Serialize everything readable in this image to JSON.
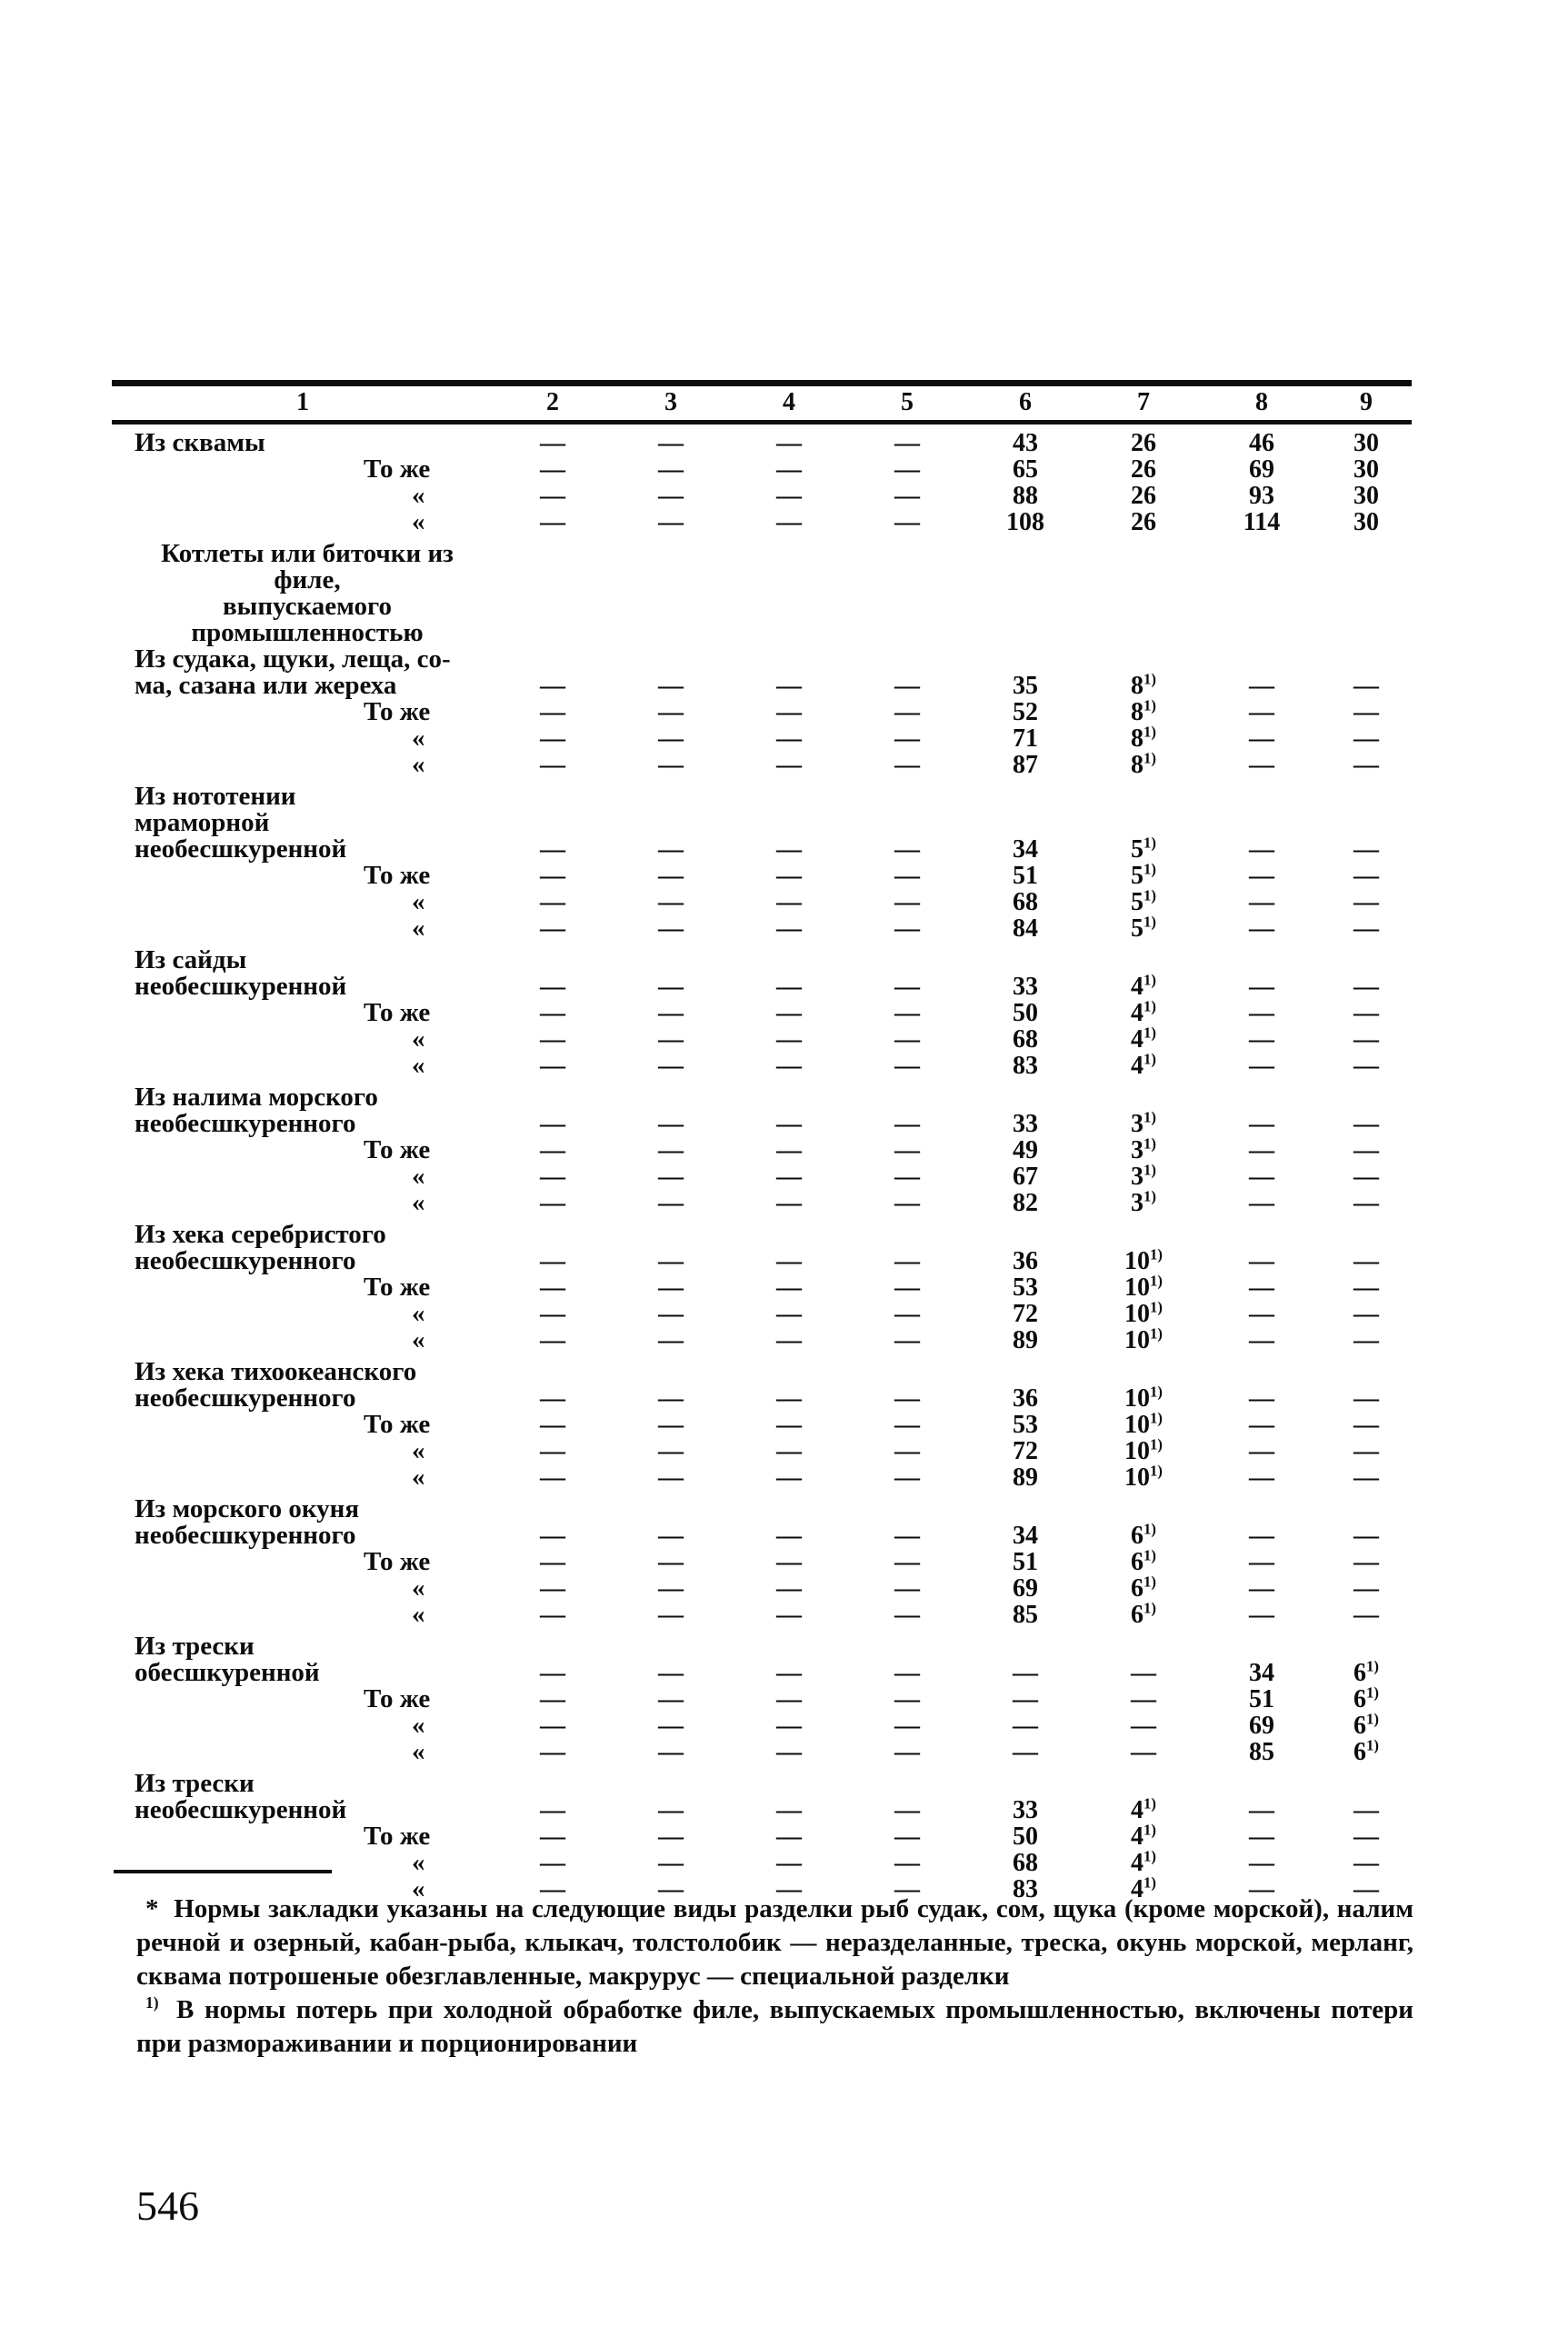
{
  "page": {
    "number": "546"
  },
  "table": {
    "columns": [
      "1",
      "2",
      "3",
      "4",
      "5",
      "6",
      "7",
      "8",
      "9"
    ],
    "rows": [
      {
        "label": "Из сквамы",
        "align": "left",
        "cells": [
          "—",
          "—",
          "—",
          "—",
          "43",
          "26",
          "46",
          "30"
        ]
      },
      {
        "label": "То же",
        "align": "toje",
        "cells": [
          "—",
          "—",
          "—",
          "—",
          "65",
          "26",
          "69",
          "30"
        ]
      },
      {
        "label": "«",
        "align": "quote",
        "cells": [
          "—",
          "—",
          "—",
          "—",
          "88",
          "26",
          "93",
          "30"
        ]
      },
      {
        "label": "«",
        "align": "quote",
        "cells": [
          "—",
          "—",
          "—",
          "—",
          "108",
          "26",
          "114",
          "30"
        ]
      },
      {
        "label": "Котлеты или биточки из филе,",
        "align": "section",
        "cells": []
      },
      {
        "label": "выпускаемого промышленностью",
        "align": "section",
        "cells": []
      },
      {
        "label": "Из судака, щуки, леща, со-",
        "align": "left",
        "cells": []
      },
      {
        "label": "ма, сазана или жереха",
        "align": "left",
        "cells": [
          "—",
          "—",
          "—",
          "—",
          "35",
          "8¹⁾",
          "—",
          "—"
        ]
      },
      {
        "label": "То же",
        "align": "toje",
        "cells": [
          "—",
          "—",
          "—",
          "—",
          "52",
          "8¹⁾",
          "—",
          "—"
        ]
      },
      {
        "label": "«",
        "align": "quote",
        "cells": [
          "—",
          "—",
          "—",
          "—",
          "71",
          "8¹⁾",
          "—",
          "—"
        ]
      },
      {
        "label": "«",
        "align": "quote",
        "cells": [
          "—",
          "—",
          "—",
          "—",
          "87",
          "8¹⁾",
          "—",
          "—"
        ]
      },
      {
        "label": "Из нототении",
        "align": "left",
        "cells": []
      },
      {
        "label": "мраморной",
        "align": "left",
        "cells": []
      },
      {
        "label": "необесшкуренной",
        "align": "left",
        "cells": [
          "—",
          "—",
          "—",
          "—",
          "34",
          "5¹⁾",
          "—",
          "—"
        ]
      },
      {
        "label": "То же",
        "align": "toje",
        "cells": [
          "—",
          "—",
          "—",
          "—",
          "51",
          "5¹⁾",
          "—",
          "—"
        ]
      },
      {
        "label": "«",
        "align": "quote",
        "cells": [
          "—",
          "—",
          "—",
          "—",
          "68",
          "5¹⁾",
          "—",
          "—"
        ]
      },
      {
        "label": "«",
        "align": "quote",
        "cells": [
          "—",
          "—",
          "—",
          "—",
          "84",
          "5¹⁾",
          "—",
          "—"
        ]
      },
      {
        "label": "Из сайды",
        "align": "left",
        "cells": []
      },
      {
        "label": "необесшкуренной",
        "align": "left",
        "cells": [
          "—",
          "—",
          "—",
          "—",
          "33",
          "4¹⁾",
          "—",
          "—"
        ]
      },
      {
        "label": "То же",
        "align": "toje",
        "cells": [
          "—",
          "—",
          "—",
          "—",
          "50",
          "4¹⁾",
          "—",
          "—"
        ]
      },
      {
        "label": "«",
        "align": "quote",
        "cells": [
          "—",
          "—",
          "—",
          "—",
          "68",
          "4¹⁾",
          "—",
          "—"
        ]
      },
      {
        "label": "«",
        "align": "quote",
        "cells": [
          "—",
          "—",
          "—",
          "—",
          "83",
          "4¹⁾",
          "—",
          "—"
        ]
      },
      {
        "label": "Из налима морского",
        "align": "left",
        "cells": []
      },
      {
        "label": "необесшкуренного",
        "align": "left",
        "cells": [
          "—",
          "—",
          "—",
          "—",
          "33",
          "3¹⁾",
          "—",
          "—"
        ]
      },
      {
        "label": "То же",
        "align": "toje",
        "cells": [
          "—",
          "—",
          "—",
          "—",
          "49",
          "3¹⁾",
          "—",
          "—"
        ]
      },
      {
        "label": "«",
        "align": "quote",
        "cells": [
          "—",
          "—",
          "—",
          "—",
          "67",
          "3¹⁾",
          "—",
          "—"
        ]
      },
      {
        "label": "«",
        "align": "quote",
        "cells": [
          "—",
          "—",
          "—",
          "—",
          "82",
          "3¹⁾",
          "—",
          "—"
        ]
      },
      {
        "label": "Из хека серебристого",
        "align": "left",
        "cells": []
      },
      {
        "label": "необесшкуренного",
        "align": "left",
        "cells": [
          "—",
          "—",
          "—",
          "—",
          "36",
          "10¹⁾",
          "—",
          "—"
        ]
      },
      {
        "label": "То же",
        "align": "toje",
        "cells": [
          "—",
          "—",
          "—",
          "—",
          "53",
          "10¹⁾",
          "—",
          "—"
        ]
      },
      {
        "label": "«",
        "align": "quote",
        "cells": [
          "—",
          "—",
          "—",
          "—",
          "72",
          "10¹⁾",
          "—",
          "—"
        ]
      },
      {
        "label": "«",
        "align": "quote",
        "cells": [
          "—",
          "—",
          "—",
          "—",
          "89",
          "10¹⁾",
          "—",
          "—"
        ]
      },
      {
        "label": "Из хека тихоокеанского",
        "align": "left",
        "cells": []
      },
      {
        "label": "необесшкуренного",
        "align": "left",
        "cells": [
          "—",
          "—",
          "—",
          "—",
          "36",
          "10¹⁾",
          "—",
          "—"
        ]
      },
      {
        "label": "То же",
        "align": "toje",
        "cells": [
          "—",
          "—",
          "—",
          "—",
          "53",
          "10¹⁾",
          "—",
          "—"
        ]
      },
      {
        "label": "«",
        "align": "quote",
        "cells": [
          "—",
          "—",
          "—",
          "—",
          "72",
          "10¹⁾",
          "—",
          "—"
        ]
      },
      {
        "label": "«",
        "align": "quote",
        "cells": [
          "—",
          "—",
          "—",
          "—",
          "89",
          "10¹⁾",
          "—",
          "—"
        ]
      },
      {
        "label": "Из морского окуня",
        "align": "left",
        "cells": []
      },
      {
        "label": "необесшкуренного",
        "align": "left",
        "cells": [
          "—",
          "—",
          "—",
          "—",
          "34",
          "6¹⁾",
          "—",
          "—"
        ]
      },
      {
        "label": "То же",
        "align": "toje",
        "cells": [
          "—",
          "—",
          "—",
          "—",
          "51",
          "6¹⁾",
          "—",
          "—"
        ]
      },
      {
        "label": "«",
        "align": "quote",
        "cells": [
          "—",
          "—",
          "—",
          "—",
          "69",
          "6¹⁾",
          "—",
          "—"
        ]
      },
      {
        "label": "«",
        "align": "quote",
        "cells": [
          "—",
          "—",
          "—",
          "—",
          "85",
          "6¹⁾",
          "—",
          "—"
        ]
      },
      {
        "label": "Из трески",
        "align": "left",
        "cells": []
      },
      {
        "label": "обесшкуренной",
        "align": "left",
        "cells": [
          "—",
          "—",
          "—",
          "—",
          "—",
          "—",
          "34",
          "6¹⁾"
        ]
      },
      {
        "label": "То же",
        "align": "toje",
        "cells": [
          "—",
          "—",
          "—",
          "—",
          "—",
          "—",
          "51",
          "6¹⁾"
        ]
      },
      {
        "label": "«",
        "align": "quote",
        "cells": [
          "—",
          "—",
          "—",
          "—",
          "—",
          "—",
          "69",
          "6¹⁾"
        ]
      },
      {
        "label": "«",
        "align": "quote",
        "cells": [
          "—",
          "—",
          "—",
          "—",
          "—",
          "—",
          "85",
          "6¹⁾"
        ]
      },
      {
        "label": "Из трески",
        "align": "left",
        "cells": []
      },
      {
        "label": "необесшкуренной",
        "align": "left",
        "cells": [
          "—",
          "—",
          "—",
          "—",
          "33",
          "4¹⁾",
          "—",
          "—"
        ]
      },
      {
        "label": "То же",
        "align": "toje",
        "cells": [
          "—",
          "—",
          "—",
          "—",
          "50",
          "4¹⁾",
          "—",
          "—"
        ]
      },
      {
        "label": "«",
        "align": "quote",
        "cells": [
          "—",
          "—",
          "—",
          "—",
          "68",
          "4¹⁾",
          "—",
          "—"
        ]
      },
      {
        "label": "«",
        "align": "quote",
        "cells": [
          "—",
          "—",
          "—",
          "—",
          "83",
          "4¹⁾",
          "—",
          "—"
        ]
      }
    ]
  },
  "footnotes": {
    "items": [
      {
        "marker": "*",
        "sup": false,
        "text": "Нормы закладки указаны на следующие виды разделки рыб судак, сом, щука (кроме морской), налим речной и озерный, кабан-рыба, клыкач, толстолобик — неразделанные, треска, окунь морской, мерланг, сквама потрошеные обезглавленные, макрурус — специальной разделки"
      },
      {
        "marker": "1)",
        "sup": true,
        "text": "В нормы потерь при холодной обработке филе, выпускаемых промышленностью, включены потери при размораживании и порционировании"
      }
    ]
  }
}
